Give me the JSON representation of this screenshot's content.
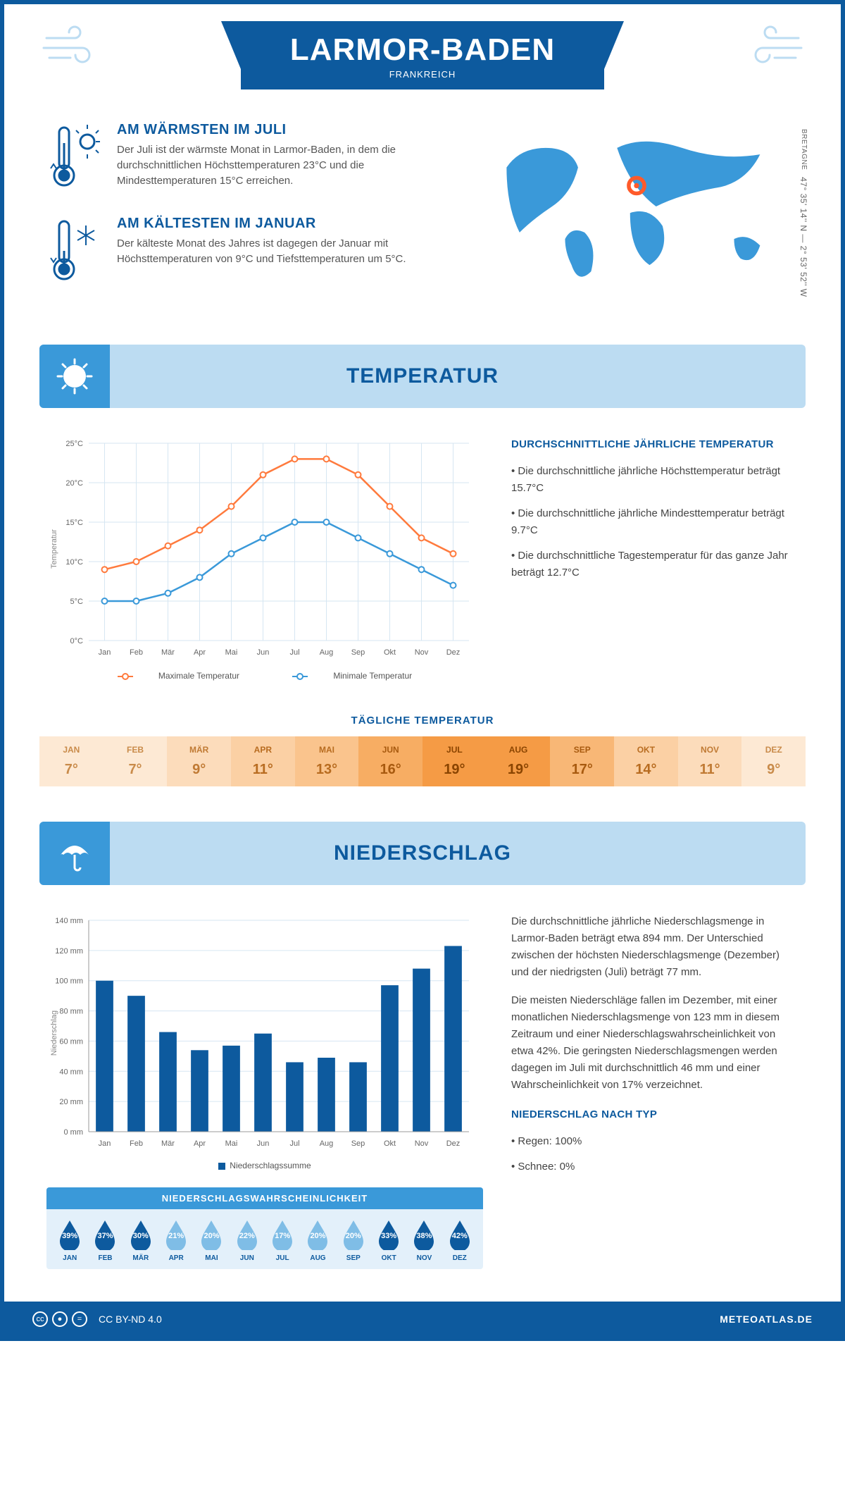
{
  "header": {
    "title": "LARMOR-BADEN",
    "country": "FRANKREICH",
    "region": "BRETAGNE",
    "coords": "47° 35' 14'' N — 2° 53' 52'' W"
  },
  "facts": {
    "warm": {
      "title": "AM WÄRMSTEN IM JULI",
      "text": "Der Juli ist der wärmste Monat in Larmor-Baden, in dem die durchschnittlichen Höchsttemperaturen 23°C und die Mindesttemperaturen 15°C erreichen."
    },
    "cold": {
      "title": "AM KÄLTESTEN IM JANUAR",
      "text": "Der kälteste Monat des Jahres ist dagegen der Januar mit Höchsttemperaturen von 9°C und Tiefsttemperaturen um 5°C."
    }
  },
  "months": [
    "Jan",
    "Feb",
    "Mär",
    "Apr",
    "Mai",
    "Jun",
    "Jul",
    "Aug",
    "Sep",
    "Okt",
    "Nov",
    "Dez"
  ],
  "months_upper": [
    "JAN",
    "FEB",
    "MÄR",
    "APR",
    "MAI",
    "JUN",
    "JUL",
    "AUG",
    "SEP",
    "OKT",
    "NOV",
    "DEZ"
  ],
  "temperature": {
    "section_title": "TEMPERATUR",
    "y_label": "Temperatur",
    "y_ticks": [
      0,
      5,
      10,
      15,
      20,
      25
    ],
    "y_tick_labels": [
      "0°C",
      "5°C",
      "10°C",
      "15°C",
      "20°C",
      "25°C"
    ],
    "max_series": {
      "label": "Maximale Temperatur",
      "color": "#ff7a3d",
      "values": [
        9,
        10,
        12,
        14,
        17,
        21,
        23,
        23,
        21,
        17,
        13,
        11
      ]
    },
    "min_series": {
      "label": "Minimale Temperatur",
      "color": "#3a99d9",
      "values": [
        5,
        5,
        6,
        8,
        11,
        13,
        15,
        15,
        13,
        11,
        9,
        7
      ]
    },
    "summary_title": "DURCHSCHNITTLICHE JÄHRLICHE TEMPERATUR",
    "summary": [
      "• Die durchschnittliche jährliche Höchsttemperatur beträgt 15.7°C",
      "• Die durchschnittliche jährliche Mindesttemperatur beträgt 9.7°C",
      "• Die durchschnittliche Tagestemperatur für das ganze Jahr beträgt 12.7°C"
    ],
    "daily_title": "TÄGLICHE TEMPERATUR",
    "daily_values": [
      "7°",
      "7°",
      "9°",
      "11°",
      "13°",
      "16°",
      "19°",
      "19°",
      "17°",
      "14°",
      "11°",
      "9°"
    ],
    "daily_bg": [
      "#fde9d4",
      "#fde9d4",
      "#fcdcbb",
      "#fbd0a4",
      "#fac48d",
      "#f7ad63",
      "#f59b45",
      "#f59b45",
      "#f8b776",
      "#fbd0a4",
      "#fcdcbb",
      "#fde9d4"
    ],
    "daily_fg": [
      "#c98b4a",
      "#c98b4a",
      "#c07a33",
      "#b86c20",
      "#b86c20",
      "#a85a0f",
      "#8a4400",
      "#8a4400",
      "#a85a0f",
      "#b86c20",
      "#c07a33",
      "#c98b4a"
    ]
  },
  "precip": {
    "section_title": "NIEDERSCHLAG",
    "y_label": "Niederschlag",
    "y_ticks": [
      0,
      20,
      40,
      60,
      80,
      100,
      120,
      140
    ],
    "y_tick_labels": [
      "0 mm",
      "20 mm",
      "40 mm",
      "60 mm",
      "80 mm",
      "100 mm",
      "120 mm",
      "140 mm"
    ],
    "values": [
      100,
      90,
      66,
      54,
      57,
      65,
      46,
      49,
      46,
      97,
      108,
      123
    ],
    "bar_color": "#0d5a9e",
    "legend_label": "Niederschlagssumme",
    "text": [
      "Die durchschnittliche jährliche Niederschlagsmenge in Larmor-Baden beträgt etwa 894 mm. Der Unterschied zwischen der höchsten Niederschlagsmenge (Dezember) und der niedrigsten (Juli) beträgt 77 mm.",
      "Die meisten Niederschläge fallen im Dezember, mit einer monatlichen Niederschlagsmenge von 123 mm in diesem Zeitraum und einer Niederschlagswahrscheinlichkeit von etwa 42%. Die geringsten Niederschlagsmengen werden dagegen im Juli mit durchschnittlich 46 mm und einer Wahrscheinlichkeit von 17% verzeichnet."
    ],
    "type_title": "NIEDERSCHLAG NACH TYP",
    "types": [
      "• Regen: 100%",
      "• Schnee: 0%"
    ],
    "prob_title": "NIEDERSCHLAGSWAHRSCHEINLICHKEIT",
    "prob_values": [
      "39%",
      "37%",
      "30%",
      "21%",
      "20%",
      "22%",
      "17%",
      "20%",
      "20%",
      "33%",
      "38%",
      "42%"
    ],
    "prob_colors": [
      "#0d5a9e",
      "#0d5a9e",
      "#0d5a9e",
      "#7fbde6",
      "#7fbde6",
      "#7fbde6",
      "#7fbde6",
      "#7fbde6",
      "#7fbde6",
      "#0d5a9e",
      "#0d5a9e",
      "#0d5a9e"
    ]
  },
  "footer": {
    "license": "CC BY-ND 4.0",
    "site": "METEOATLAS.DE"
  }
}
